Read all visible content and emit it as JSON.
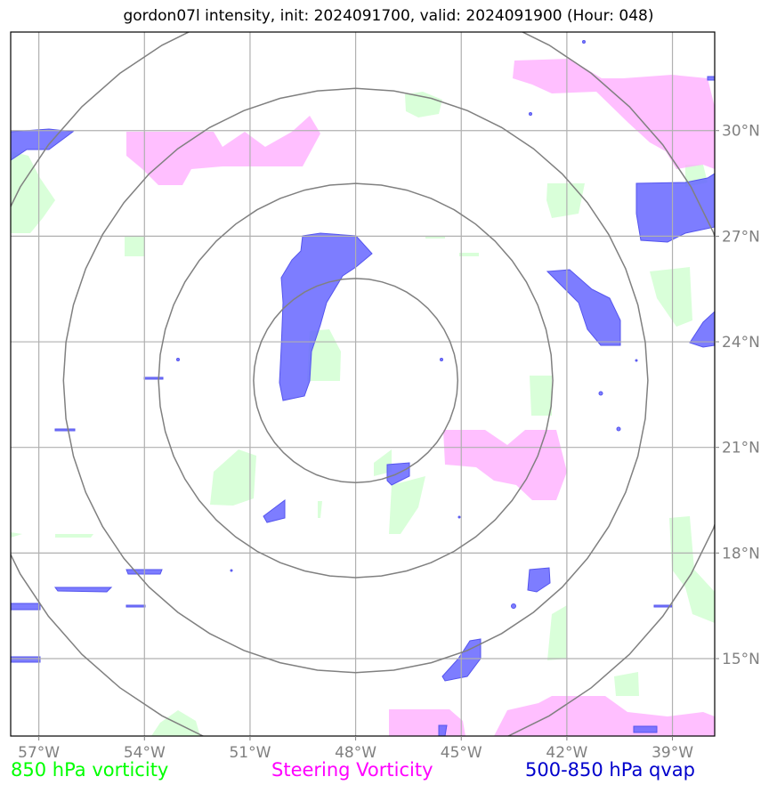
{
  "title": "gordon07l intensity, init: 2024091700, valid: 2024091900 (Hour: 048)",
  "legend": [
    {
      "label": "850 hPa vorticity",
      "color": "#00ff00"
    },
    {
      "label": "Steering Vorticity",
      "color": "#ff00ff"
    },
    {
      "label": "500-850 hPa qvap",
      "color": "#0000cc"
    }
  ],
  "map": {
    "lon_range": [
      -57.8,
      -37.8
    ],
    "lat_range": [
      12.8,
      32.8
    ],
    "lon_ticks": [
      -57,
      -54,
      -51,
      -48,
      -45,
      -42,
      -39
    ],
    "lat_ticks": [
      15,
      18,
      21,
      24,
      27,
      30
    ],
    "lon_tick_labels": [
      "57°W",
      "54°W",
      "51°W",
      "48°W",
      "45°W",
      "42°W",
      "39°W"
    ],
    "lat_tick_labels": [
      "15°N",
      "18°N",
      "21°N",
      "24°N",
      "27°N",
      "30°N"
    ],
    "center": {
      "lon": -48.0,
      "lat": 22.9
    },
    "range_ring_radii_deg": [
      2.9,
      5.6,
      8.3,
      11.0
    ],
    "colors": {
      "vorticity_850": "#ccffcc",
      "steering_vorticity": "#ffaaff",
      "qvap": "#6666ff",
      "grid": "#b0b0b0",
      "rings": "#808080"
    }
  }
}
